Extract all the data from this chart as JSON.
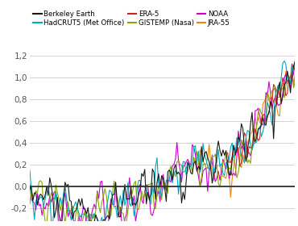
{
  "series": {
    "Berkeley Earth": {
      "color": "#1a1a1a",
      "lw": 0.8,
      "zorder": 6
    },
    "HadCRUT5 (Met Office)": {
      "color": "#00aabb",
      "lw": 0.8,
      "zorder": 5
    },
    "ERA-5": {
      "color": "#cc2222",
      "lw": 0.8,
      "zorder": 4
    },
    "GISTEMP (Nasa)": {
      "color": "#88aa00",
      "lw": 0.8,
      "zorder": 3
    },
    "NOAA": {
      "color": "#cc00cc",
      "lw": 0.8,
      "zorder": 2
    },
    "JRA-55": {
      "color": "#ee8800",
      "lw": 0.8,
      "zorder": 1
    }
  },
  "legend_order": [
    [
      "Berkeley Earth",
      "#1a1a1a"
    ],
    [
      "HadCRUT5 (Met Office)",
      "#00aabb"
    ],
    [
      "ERA-5",
      "#cc2222"
    ],
    [
      "GISTEMP (Nasa)",
      "#88aa00"
    ],
    [
      "NOAA",
      "#cc00cc"
    ],
    [
      "JRA-55",
      "#ee8800"
    ]
  ],
  "ylim": [
    -0.32,
    1.42
  ],
  "yticks": [
    -0.2,
    0.0,
    0.2,
    0.4,
    0.6,
    0.8,
    1.0,
    1.2
  ],
  "background_color": "#ffffff",
  "grid_color": "#cccccc",
  "zero_line_color": "#333333",
  "year_start": 1850,
  "year_end": 2023
}
